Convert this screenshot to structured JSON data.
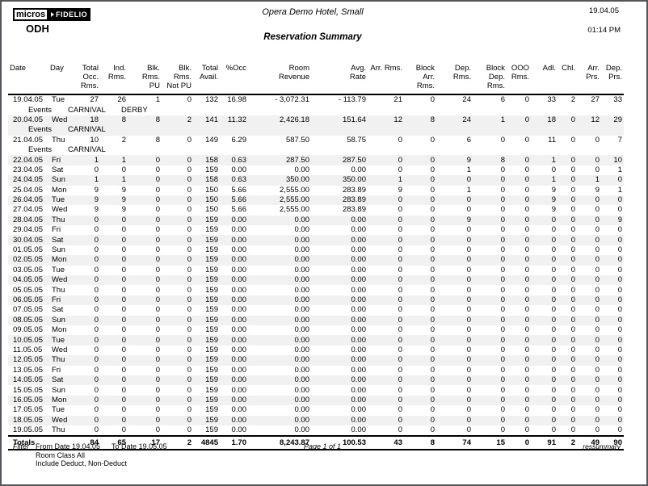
{
  "header": {
    "logo": {
      "micros": "micros",
      "fidelio": "FIDELIO"
    },
    "property_code": "ODH",
    "hotel_name": "Opera Demo Hotel, Small",
    "report_title": "Reservation Summary",
    "report_date": "19.04.05",
    "report_time": "01:14 PM"
  },
  "table": {
    "events_label": "Events",
    "columns": [
      {
        "id": "date",
        "label": "Date",
        "align": "left"
      },
      {
        "id": "day",
        "label": "Day",
        "align": "left"
      },
      {
        "id": "total_occ_rms",
        "label": "Total Occ.\nRms.",
        "align": "right"
      },
      {
        "id": "ind_rms",
        "label": "Ind. Rms.",
        "align": "right"
      },
      {
        "id": "blk_rms_pu",
        "label": "Blk. Rms.\nPU",
        "align": "right"
      },
      {
        "id": "blk_rms_not_pu",
        "label": "Blk. Rms.\nNot PU",
        "align": "right"
      },
      {
        "id": "total_avail",
        "label": "Total\nAvail.",
        "align": "right"
      },
      {
        "id": "pct_occ",
        "label": "%Occ",
        "align": "right"
      },
      {
        "id": "room_revenue",
        "label": "Room\nRevenue",
        "align": "right"
      },
      {
        "id": "avg_rate",
        "label": "Avg.\nRate",
        "align": "right"
      },
      {
        "id": "arr_rms",
        "label": "Arr. Rms.",
        "align": "right"
      },
      {
        "id": "block_arr_rms",
        "label": "Block\nArr. Rms.",
        "align": "right"
      },
      {
        "id": "dep_rms",
        "label": "Dep. Rms.",
        "align": "right"
      },
      {
        "id": "block_dep_rms",
        "label": "Block\nDep. Rms.",
        "align": "right"
      },
      {
        "id": "ooo_rms",
        "label": "OOO\nRms.",
        "align": "right"
      },
      {
        "id": "adl",
        "label": "Adl.",
        "align": "right"
      },
      {
        "id": "chl",
        "label": "Chl.",
        "align": "right"
      },
      {
        "id": "arr_prs",
        "label": "Arr.\nPrs.",
        "align": "right"
      },
      {
        "id": "dep_prs",
        "label": "Dep.\nPrs.",
        "align": "right"
      }
    ],
    "rows": [
      {
        "date": "19.04.05",
        "day": "Tue",
        "values": [
          "27",
          "26",
          "1",
          "0",
          "132",
          "16.98",
          "- 3,072.31",
          "- 113.79",
          "21",
          "0",
          "24",
          "6",
          "0",
          "33",
          "2",
          "27",
          "33"
        ],
        "events": [
          "CARNIVAL",
          "DERBY"
        ]
      },
      {
        "date": "20.04.05",
        "day": "Wed",
        "values": [
          "18",
          "8",
          "8",
          "2",
          "141",
          "11.32",
          "2,426.18",
          "151.64",
          "12",
          "8",
          "24",
          "1",
          "0",
          "18",
          "0",
          "12",
          "29"
        ],
        "events": [
          "CARNIVAL"
        ]
      },
      {
        "date": "21.04.05",
        "day": "Thu",
        "values": [
          "10",
          "2",
          "8",
          "0",
          "149",
          "6.29",
          "587.50",
          "58.75",
          "0",
          "0",
          "6",
          "0",
          "0",
          "11",
          "0",
          "0",
          "7"
        ],
        "events": [
          "CARNIVAL"
        ]
      },
      {
        "date": "22.04.05",
        "day": "Fri",
        "values": [
          "1",
          "1",
          "0",
          "0",
          "158",
          "0.63",
          "287.50",
          "287.50",
          "0",
          "0",
          "9",
          "8",
          "0",
          "1",
          "0",
          "0",
          "10"
        ]
      },
      {
        "date": "23.04.05",
        "day": "Sat",
        "values": [
          "0",
          "0",
          "0",
          "0",
          "159",
          "0.00",
          "0.00",
          "0.00",
          "0",
          "0",
          "1",
          "0",
          "0",
          "0",
          "0",
          "0",
          "1"
        ]
      },
      {
        "date": "24.04.05",
        "day": "Sun",
        "values": [
          "1",
          "1",
          "0",
          "0",
          "158",
          "0.63",
          "350.00",
          "350.00",
          "1",
          "0",
          "0",
          "0",
          "0",
          "1",
          "0",
          "1",
          "0"
        ]
      },
      {
        "date": "25.04.05",
        "day": "Mon",
        "values": [
          "9",
          "9",
          "0",
          "0",
          "150",
          "5.66",
          "2,555.00",
          "283.89",
          "9",
          "0",
          "1",
          "0",
          "0",
          "9",
          "0",
          "9",
          "1"
        ]
      },
      {
        "date": "26.04.05",
        "day": "Tue",
        "values": [
          "9",
          "9",
          "0",
          "0",
          "150",
          "5.66",
          "2,555.00",
          "283.89",
          "0",
          "0",
          "0",
          "0",
          "0",
          "9",
          "0",
          "0",
          "0"
        ]
      },
      {
        "date": "27.04.05",
        "day": "Wed",
        "values": [
          "9",
          "9",
          "0",
          "0",
          "150",
          "5.66",
          "2,555.00",
          "283.89",
          "0",
          "0",
          "0",
          "0",
          "0",
          "9",
          "0",
          "0",
          "0"
        ]
      },
      {
        "date": "28.04.05",
        "day": "Thu",
        "values": [
          "0",
          "0",
          "0",
          "0",
          "159",
          "0.00",
          "0.00",
          "0.00",
          "0",
          "0",
          "9",
          "0",
          "0",
          "0",
          "0",
          "0",
          "9"
        ]
      },
      {
        "date": "29.04.05",
        "day": "Fri",
        "values": [
          "0",
          "0",
          "0",
          "0",
          "159",
          "0.00",
          "0.00",
          "0.00",
          "0",
          "0",
          "0",
          "0",
          "0",
          "0",
          "0",
          "0",
          "0"
        ]
      },
      {
        "date": "30.04.05",
        "day": "Sat",
        "values": [
          "0",
          "0",
          "0",
          "0",
          "159",
          "0.00",
          "0.00",
          "0.00",
          "0",
          "0",
          "0",
          "0",
          "0",
          "0",
          "0",
          "0",
          "0"
        ]
      },
      {
        "date": "01.05.05",
        "day": "Sun",
        "values": [
          "0",
          "0",
          "0",
          "0",
          "159",
          "0.00",
          "0.00",
          "0.00",
          "0",
          "0",
          "0",
          "0",
          "0",
          "0",
          "0",
          "0",
          "0"
        ]
      },
      {
        "date": "02.05.05",
        "day": "Mon",
        "values": [
          "0",
          "0",
          "0",
          "0",
          "159",
          "0.00",
          "0.00",
          "0.00",
          "0",
          "0",
          "0",
          "0",
          "0",
          "0",
          "0",
          "0",
          "0"
        ]
      },
      {
        "date": "03.05.05",
        "day": "Tue",
        "values": [
          "0",
          "0",
          "0",
          "0",
          "159",
          "0.00",
          "0.00",
          "0.00",
          "0",
          "0",
          "0",
          "0",
          "0",
          "0",
          "0",
          "0",
          "0"
        ]
      },
      {
        "date": "04.05.05",
        "day": "Wed",
        "values": [
          "0",
          "0",
          "0",
          "0",
          "159",
          "0.00",
          "0.00",
          "0.00",
          "0",
          "0",
          "0",
          "0",
          "0",
          "0",
          "0",
          "0",
          "0"
        ]
      },
      {
        "date": "05.05.05",
        "day": "Thu",
        "values": [
          "0",
          "0",
          "0",
          "0",
          "159",
          "0.00",
          "0.00",
          "0.00",
          "0",
          "0",
          "0",
          "0",
          "0",
          "0",
          "0",
          "0",
          "0"
        ]
      },
      {
        "date": "06.05.05",
        "day": "Fri",
        "values": [
          "0",
          "0",
          "0",
          "0",
          "159",
          "0.00",
          "0.00",
          "0.00",
          "0",
          "0",
          "0",
          "0",
          "0",
          "0",
          "0",
          "0",
          "0"
        ]
      },
      {
        "date": "07.05.05",
        "day": "Sat",
        "values": [
          "0",
          "0",
          "0",
          "0",
          "159",
          "0.00",
          "0.00",
          "0.00",
          "0",
          "0",
          "0",
          "0",
          "0",
          "0",
          "0",
          "0",
          "0"
        ]
      },
      {
        "date": "08.05.05",
        "day": "Sun",
        "values": [
          "0",
          "0",
          "0",
          "0",
          "159",
          "0.00",
          "0.00",
          "0.00",
          "0",
          "0",
          "0",
          "0",
          "0",
          "0",
          "0",
          "0",
          "0"
        ]
      },
      {
        "date": "09.05.05",
        "day": "Mon",
        "values": [
          "0",
          "0",
          "0",
          "0",
          "159",
          "0.00",
          "0.00",
          "0.00",
          "0",
          "0",
          "0",
          "0",
          "0",
          "0",
          "0",
          "0",
          "0"
        ]
      },
      {
        "date": "10.05.05",
        "day": "Tue",
        "values": [
          "0",
          "0",
          "0",
          "0",
          "159",
          "0.00",
          "0.00",
          "0.00",
          "0",
          "0",
          "0",
          "0",
          "0",
          "0",
          "0",
          "0",
          "0"
        ]
      },
      {
        "date": "11.05.05",
        "day": "Wed",
        "values": [
          "0",
          "0",
          "0",
          "0",
          "159",
          "0.00",
          "0.00",
          "0.00",
          "0",
          "0",
          "0",
          "0",
          "0",
          "0",
          "0",
          "0",
          "0"
        ]
      },
      {
        "date": "12.05.05",
        "day": "Thu",
        "values": [
          "0",
          "0",
          "0",
          "0",
          "159",
          "0.00",
          "0.00",
          "0.00",
          "0",
          "0",
          "0",
          "0",
          "0",
          "0",
          "0",
          "0",
          "0"
        ]
      },
      {
        "date": "13.05.05",
        "day": "Fri",
        "values": [
          "0",
          "0",
          "0",
          "0",
          "159",
          "0.00",
          "0.00",
          "0.00",
          "0",
          "0",
          "0",
          "0",
          "0",
          "0",
          "0",
          "0",
          "0"
        ]
      },
      {
        "date": "14.05.05",
        "day": "Sat",
        "values": [
          "0",
          "0",
          "0",
          "0",
          "159",
          "0.00",
          "0.00",
          "0.00",
          "0",
          "0",
          "0",
          "0",
          "0",
          "0",
          "0",
          "0",
          "0"
        ]
      },
      {
        "date": "15.05.05",
        "day": "Sun",
        "values": [
          "0",
          "0",
          "0",
          "0",
          "159",
          "0.00",
          "0.00",
          "0.00",
          "0",
          "0",
          "0",
          "0",
          "0",
          "0",
          "0",
          "0",
          "0"
        ]
      },
      {
        "date": "16.05.05",
        "day": "Mon",
        "values": [
          "0",
          "0",
          "0",
          "0",
          "159",
          "0.00",
          "0.00",
          "0.00",
          "0",
          "0",
          "0",
          "0",
          "0",
          "0",
          "0",
          "0",
          "0"
        ]
      },
      {
        "date": "17.05.05",
        "day": "Tue",
        "values": [
          "0",
          "0",
          "0",
          "0",
          "159",
          "0.00",
          "0.00",
          "0.00",
          "0",
          "0",
          "0",
          "0",
          "0",
          "0",
          "0",
          "0",
          "0"
        ]
      },
      {
        "date": "18.05.05",
        "day": "Wed",
        "values": [
          "0",
          "0",
          "0",
          "0",
          "159",
          "0.00",
          "0.00",
          "0.00",
          "0",
          "0",
          "0",
          "0",
          "0",
          "0",
          "0",
          "0",
          "0"
        ]
      },
      {
        "date": "19.05.05",
        "day": "Thu",
        "values": [
          "0",
          "0",
          "0",
          "0",
          "159",
          "0.00",
          "0.00",
          "0.00",
          "0",
          "0",
          "0",
          "0",
          "0",
          "0",
          "0",
          "0",
          "0"
        ]
      }
    ],
    "totals": {
      "label": "Totals",
      "values": [
        "84",
        "65",
        "17",
        "2",
        "4845",
        "1.70",
        "8,243.87",
        "100.53",
        "43",
        "8",
        "74",
        "15",
        "0",
        "91",
        "2",
        "49",
        "90"
      ]
    }
  },
  "footer": {
    "filter_label": "Filter",
    "filter_from": "From Date 19.04.05",
    "filter_to": "To Date 19.05.05",
    "filter_room_class": "Room Class All",
    "filter_include": "Include Deduct, Non-Deduct",
    "page_info": "Page 1 of 1",
    "report_code": "ressummary"
  },
  "colors": {
    "stripe": "#f1f1f1",
    "rule": "#000000",
    "window_border": "#55565a"
  }
}
